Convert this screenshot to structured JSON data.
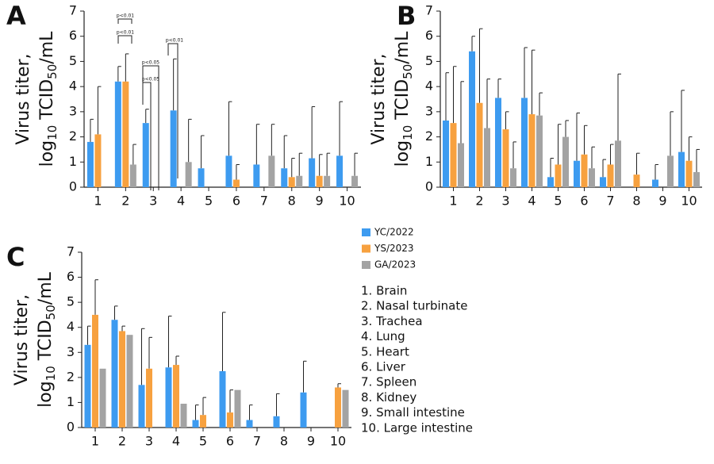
{
  "legend": [
    {
      "name": "YC/2022",
      "color": "#3d9bf0"
    },
    {
      "name": "YS/2023",
      "color": "#f7a13f"
    },
    {
      "name": "GA/2023",
      "color": "#a3a3a3"
    }
  ],
  "key": [
    "1. Brain",
    "2. Nasal turbinate",
    "3. Trachea",
    "4. Lung",
    "5. Heart",
    "6. Liver",
    "7. Spleen",
    "8. Kidney",
    "9. Small intestine",
    "10. Large intestine"
  ],
  "chart_data": [
    {
      "type": "bar",
      "label": "A",
      "ylabel": {
        "line1": "Virus titer,",
        "parts": [
          "log",
          "10",
          " TCID",
          "50",
          "/mL"
        ]
      },
      "categories": [
        "1",
        "2",
        "3",
        "4",
        "5",
        "6",
        "7",
        "8",
        "9",
        "10"
      ],
      "series": [
        {
          "values": [
            1.8,
            4.2,
            2.55,
            3.05,
            0.75,
            1.25,
            0.9,
            0.75,
            1.15,
            1.25
          ],
          "errors": [
            0.9,
            0.6,
            0.55,
            2.05,
            1.3,
            2.15,
            1.6,
            1.3,
            2.05,
            2.15
          ]
        },
        {
          "values": [
            2.1,
            4.2,
            null,
            null,
            null,
            0.3,
            null,
            0.4,
            0.45,
            null
          ],
          "errors": [
            1.9,
            1.1,
            null,
            null,
            null,
            0.6,
            null,
            0.75,
            0.85,
            null
          ]
        },
        {
          "values": [
            null,
            0.9,
            null,
            1.0,
            null,
            null,
            1.25,
            0.45,
            0.45,
            0.45
          ],
          "errors": [
            null,
            0.8,
            null,
            1.7,
            null,
            null,
            1.25,
            0.9,
            0.9,
            0.9
          ]
        }
      ],
      "annotations": [
        "p<0.01",
        "p<0.01",
        "p<0.05",
        "p<0.05",
        "p<0.01"
      ],
      "ylim": [
        0,
        7
      ],
      "yticks": [
        0,
        1,
        2,
        3,
        4,
        5,
        6,
        7
      ]
    },
    {
      "type": "bar",
      "label": "B",
      "ylabel": {
        "line1": "Virus titer,",
        "parts": [
          "log",
          "10",
          " TCID",
          "50",
          "/mL"
        ]
      },
      "categories": [
        "1",
        "2",
        "3",
        "4",
        "5",
        "6",
        "7",
        "8",
        "9",
        "10"
      ],
      "series": [
        {
          "values": [
            2.65,
            5.4,
            3.55,
            3.55,
            0.4,
            1.05,
            0.4,
            null,
            0.3,
            1.4
          ],
          "errors": [
            1.9,
            0.6,
            0.75,
            2.0,
            0.75,
            1.9,
            0.7,
            null,
            0.6,
            2.45
          ]
        },
        {
          "values": [
            2.55,
            3.35,
            2.3,
            2.9,
            0.9,
            1.3,
            0.9,
            0.5,
            null,
            1.05
          ],
          "errors": [
            2.25,
            2.95,
            0.7,
            2.55,
            1.6,
            1.15,
            0.8,
            0.85,
            null,
            0.95
          ]
        },
        {
          "values": [
            1.75,
            2.35,
            0.75,
            2.85,
            2.0,
            0.75,
            1.85,
            null,
            1.25,
            0.6
          ],
          "errors": [
            2.45,
            1.95,
            1.05,
            0.9,
            0.65,
            0.85,
            2.65,
            null,
            1.75,
            0.9
          ]
        }
      ],
      "ylim": [
        0,
        7
      ],
      "yticks": [
        0,
        1,
        2,
        3,
        4,
        5,
        6,
        7
      ]
    },
    {
      "type": "bar",
      "label": "C",
      "ylabel": {
        "line1": "Virus titer,",
        "parts": [
          "log",
          "10",
          " TCID",
          "50",
          "/mL"
        ]
      },
      "categories": [
        "1",
        "2",
        "3",
        "4",
        "5",
        "6",
        "7",
        "8",
        "9",
        "10"
      ],
      "series": [
        {
          "values": [
            3.3,
            4.3,
            1.7,
            2.4,
            0.3,
            2.25,
            0.3,
            0.45,
            1.4,
            null
          ],
          "errors": [
            0.75,
            0.55,
            2.25,
            2.05,
            0.6,
            2.35,
            0.6,
            0.9,
            1.25,
            null
          ]
        },
        {
          "values": [
            4.5,
            3.85,
            2.35,
            2.5,
            0.5,
            0.6,
            null,
            null,
            null,
            1.6
          ],
          "errors": [
            1.4,
            0.2,
            1.25,
            0.35,
            0.7,
            0.9,
            null,
            null,
            null,
            0.15
          ]
        },
        {
          "values": [
            2.35,
            3.7,
            null,
            0.95,
            null,
            1.5,
            null,
            null,
            null,
            1.5
          ],
          "errors": [
            0,
            0,
            null,
            0,
            null,
            0,
            null,
            null,
            null,
            0
          ]
        }
      ],
      "ylim": [
        0,
        7
      ],
      "yticks": [
        0,
        1,
        2,
        3,
        4,
        5,
        6,
        7
      ]
    }
  ]
}
